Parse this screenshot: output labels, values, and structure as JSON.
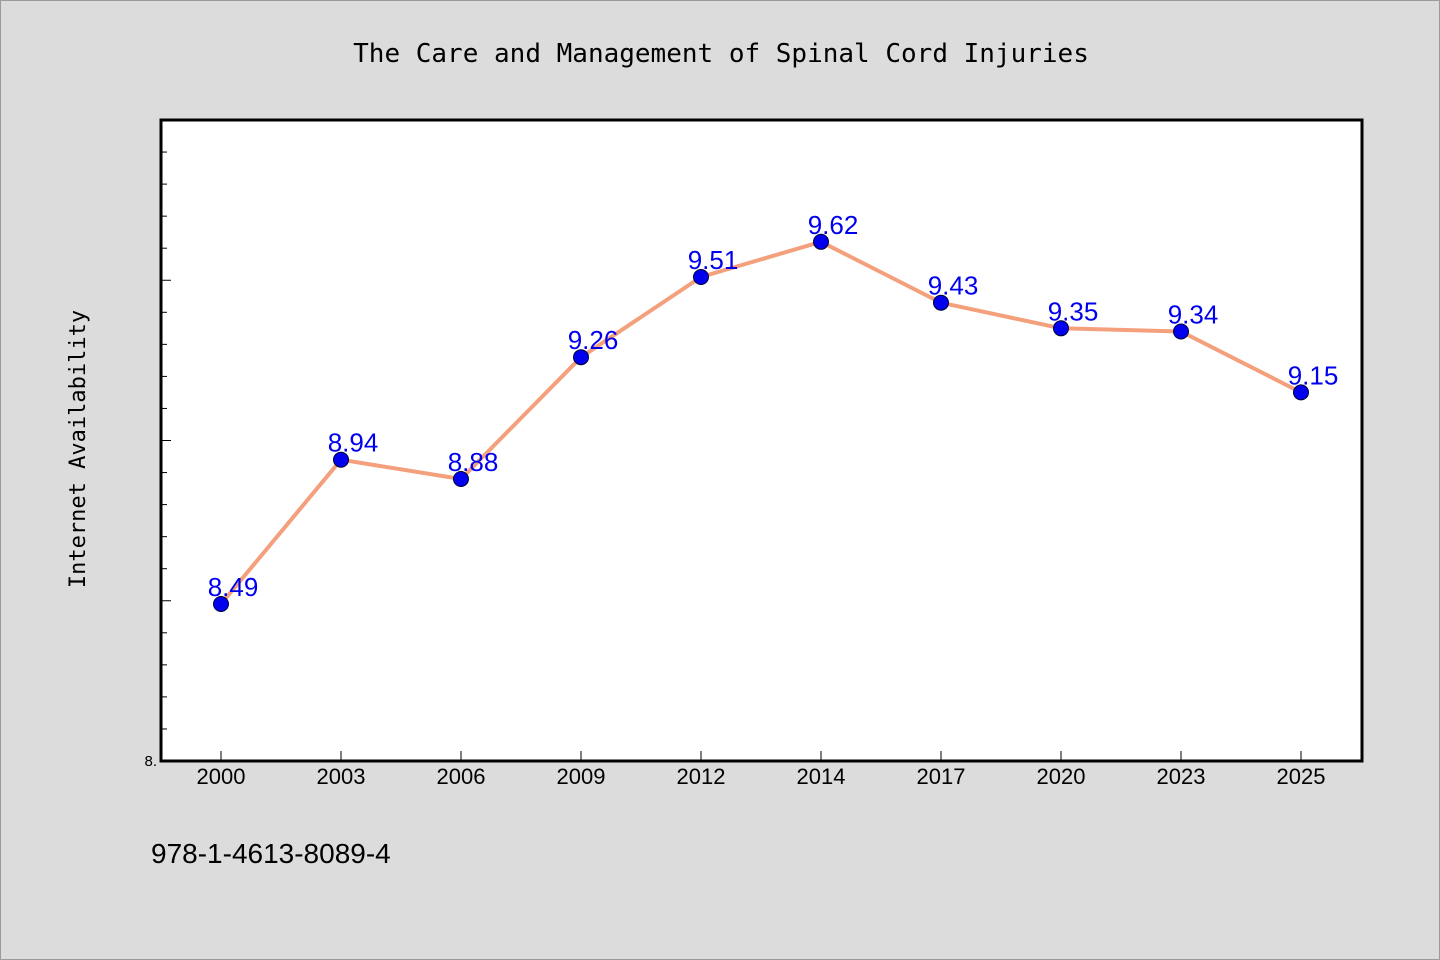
{
  "chart_data": {
    "type": "line",
    "title": "The Care and Management of Spinal Cord Injuries",
    "xlabel": "",
    "ylabel": "Internet Availability",
    "categories": [
      "2000",
      "2003",
      "2006",
      "2009",
      "2012",
      "2014",
      "2017",
      "2020",
      "2023",
      "2025"
    ],
    "series": [
      {
        "values": [
          8.49,
          8.94,
          8.88,
          9.26,
          9.51,
          9.62,
          9.43,
          9.35,
          9.34,
          9.15
        ],
        "data_labels": [
          "8.49",
          "8.94",
          "8.88",
          "9.26",
          "9.51",
          "9.62",
          "9.43",
          "9.35",
          "9.34",
          "9.15"
        ],
        "line_color": "#f4a07c",
        "marker_color": "#0000ee"
      }
    ],
    "ylim": [
      8.0,
      10.0
    ],
    "ytick_labels": [
      "8."
    ],
    "grid": false,
    "legend": "none"
  },
  "footer": {
    "isbn": "978-1-4613-8089-4"
  },
  "colors": {
    "background": "#dcdcdc",
    "plot_background": "#ffffff",
    "line": "#f4a07c",
    "marker": "#0000ee",
    "data_label": "#0000ee"
  }
}
